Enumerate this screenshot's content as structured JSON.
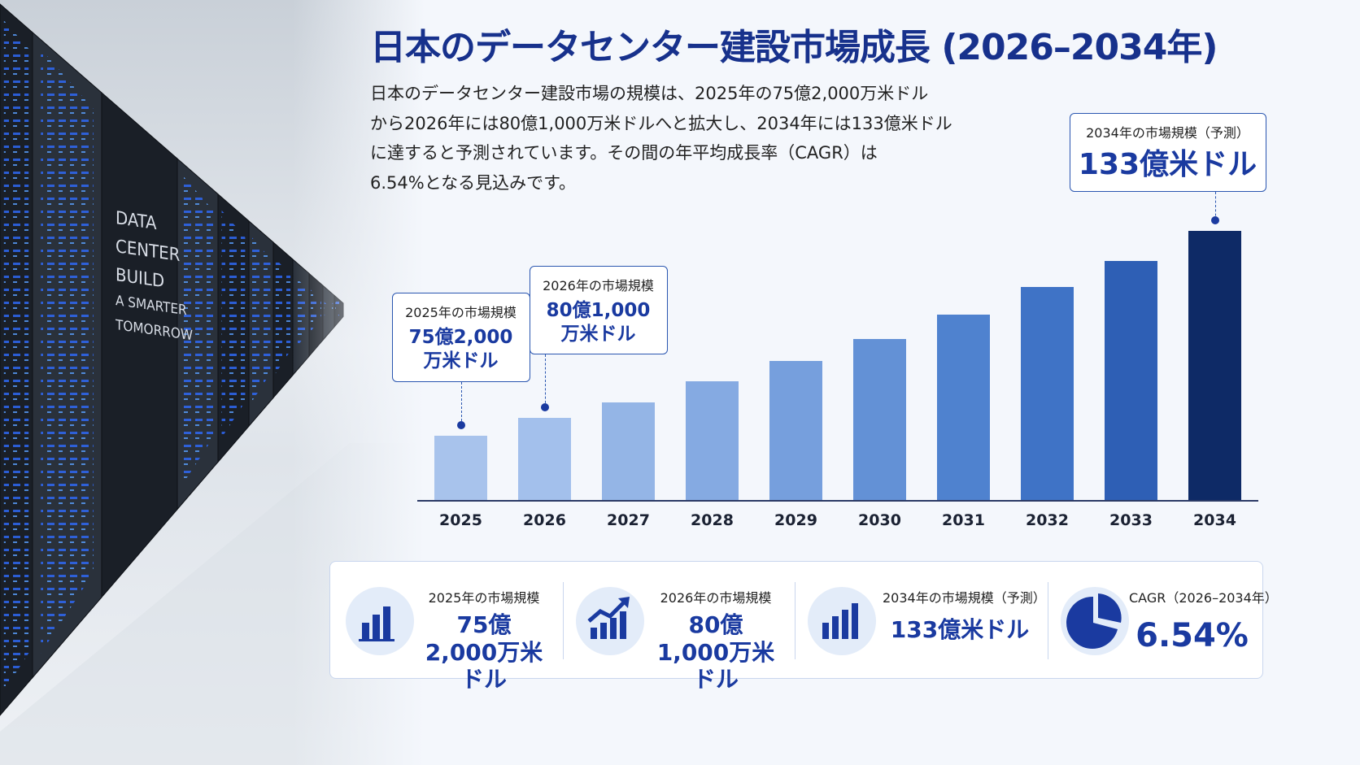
{
  "title": "日本のデータセンター建設市場成長 (2026–2034年)",
  "description": [
    "日本のデータセンター建設市場の規模は、2025年の75億2,000万米ドル",
    "から2026年には80億1,000万米ドルへと拡大し、2034年には133億米ドル",
    "に達すると予測されています。その間の年平均成長率（CAGR）は",
    "6.54%となる見込みです。"
  ],
  "background": {
    "photo_text": [
      "DATA",
      "CENTER",
      "BUILD",
      "A SMARTER",
      "TOMORROW"
    ]
  },
  "chart_data": {
    "type": "bar",
    "categories": [
      "2025",
      "2026",
      "2027",
      "2028",
      "2029",
      "2030",
      "2031",
      "2032",
      "2033",
      "2034"
    ],
    "values": [
      75.2,
      80.1,
      84.6,
      90.4,
      96.1,
      102.5,
      109.2,
      117.0,
      124.5,
      133
    ],
    "value_labels": [
      "75億2,000万米ドル",
      "80億1,000万米ドル",
      null,
      null,
      null,
      null,
      null,
      null,
      null,
      "133億米ドル"
    ],
    "callout_titles": [
      "2025年の市場規模",
      "2026年の市場規模",
      null,
      null,
      null,
      null,
      null,
      null,
      null,
      "2034年の市場規模（予測）"
    ],
    "colors": [
      "#a8c3ec",
      "#a3c0ec",
      "#94b5e6",
      "#85aae2",
      "#769fdd",
      "#6391d6",
      "#4f82cf",
      "#3f73c6",
      "#2e5fb5",
      "#0e2a66"
    ],
    "ylim": [
      57,
      140
    ]
  },
  "stats": [
    {
      "title": "2025年の市場規模",
      "value": "75億2,000万米ドル"
    },
    {
      "title": "2026年の市場規模",
      "value": "80億1,000万米ドル"
    },
    {
      "title": "2034年の市場規模（予測）",
      "value": "133億米ドル"
    },
    {
      "title": "CAGR（2026–2034年）",
      "value": "6.54%"
    }
  ]
}
